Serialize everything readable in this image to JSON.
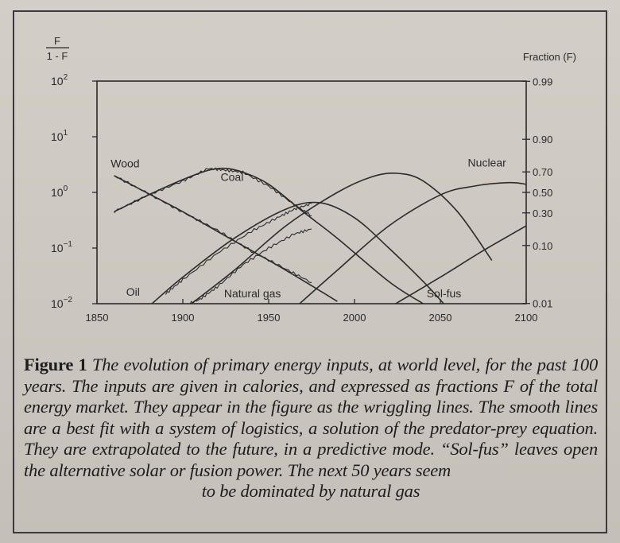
{
  "chart_data": {
    "type": "line",
    "x_range": [
      1850,
      2100
    ],
    "x_ticks": [
      "1850",
      "1900",
      "1950",
      "2000",
      "2050",
      "2100"
    ],
    "left_axis": {
      "label_top": "F",
      "label_bottom": "1 - F",
      "scale": "log",
      "range": [
        0.01,
        100
      ],
      "ticks": [
        {
          "base": "10",
          "exp": "2",
          "value": 100
        },
        {
          "base": "10",
          "exp": "1",
          "value": 10
        },
        {
          "base": "10",
          "exp": "0",
          "value": 1
        },
        {
          "base": "10",
          "exp": "−1",
          "value": 0.1
        },
        {
          "base": "10",
          "exp": "−2",
          "value": 0.01
        }
      ]
    },
    "right_axis": {
      "label": "Fraction (F)",
      "ticks": [
        {
          "label": "0.99",
          "value": 0.99
        },
        {
          "label": "0.90",
          "value": 0.9
        },
        {
          "label": "0.70",
          "value": 0.7
        },
        {
          "label": "0.50",
          "value": 0.5
        },
        {
          "label": "0.30",
          "value": 0.3
        },
        {
          "label": "0.10",
          "value": 0.1
        },
        {
          "label": "0.01",
          "value": 0.01
        }
      ]
    },
    "series": [
      {
        "name": "Wood",
        "x": [
          1860,
          1880,
          1900,
          1920,
          1940,
          1960,
          1980,
          1990
        ],
        "y": [
          2.0,
          0.95,
          0.45,
          0.2,
          0.09,
          0.04,
          0.017,
          0.011
        ]
      },
      {
        "name": "Coal",
        "x": [
          1860,
          1880,
          1900,
          1915,
          1925,
          1935,
          1950,
          1970,
          1990,
          2020,
          2040
        ],
        "y": [
          0.45,
          0.9,
          1.7,
          2.5,
          2.7,
          2.3,
          1.4,
          0.45,
          0.15,
          0.025,
          0.01
        ]
      },
      {
        "name": "Oil",
        "x": [
          1882,
          1900,
          1930,
          1960,
          1980,
          2000,
          2020,
          2040,
          2052
        ],
        "y": [
          0.01,
          0.03,
          0.15,
          0.5,
          0.65,
          0.35,
          0.1,
          0.025,
          0.01
        ]
      },
      {
        "name": "Natural gas",
        "x": [
          1905,
          1930,
          1960,
          1990,
          2010,
          2025,
          2040,
          2060,
          2080
        ],
        "y": [
          0.01,
          0.04,
          0.25,
          1.0,
          1.9,
          2.2,
          1.6,
          0.45,
          0.06
        ]
      },
      {
        "name": "Nuclear",
        "x": [
          1968,
          1990,
          2020,
          2050,
          2070,
          2090,
          2100
        ],
        "y": [
          0.01,
          0.04,
          0.25,
          0.9,
          1.3,
          1.5,
          1.4
        ]
      },
      {
        "name": "Sol-fus",
        "x": [
          2024,
          2050,
          2075,
          2100
        ],
        "y": [
          0.01,
          0.03,
          0.09,
          0.25
        ]
      }
    ],
    "historical": {
      "Wood": {
        "x": [
          1860,
          1880,
          1900,
          1920,
          1940,
          1960,
          1975
        ],
        "y": [
          2.0,
          0.95,
          0.44,
          0.21,
          0.088,
          0.042,
          0.024
        ]
      },
      "Coal": {
        "x": [
          1860,
          1880,
          1900,
          1915,
          1925,
          1935,
          1950,
          1965,
          1975
        ],
        "y": [
          0.45,
          0.9,
          1.6,
          2.7,
          2.5,
          2.3,
          1.3,
          0.6,
          0.38
        ]
      },
      "Oil": {
        "x": [
          1890,
          1900,
          1920,
          1940,
          1955,
          1965,
          1975
        ],
        "y": [
          0.015,
          0.027,
          0.08,
          0.2,
          0.35,
          0.5,
          0.63
        ]
      },
      "Natural gas": {
        "x": [
          1900,
          1910,
          1920,
          1935,
          1950,
          1965,
          1975
        ],
        "y": [
          0.009,
          0.012,
          0.02,
          0.05,
          0.1,
          0.18,
          0.22
        ]
      }
    },
    "annotations": [
      {
        "text": "Wood",
        "x": 1858,
        "y": 2.8
      },
      {
        "text": "Coal",
        "x": 1922,
        "y": 1.6
      },
      {
        "text": "Oil",
        "x": 1867,
        "y": 0.014
      },
      {
        "text": "Natural gas",
        "x": 1924,
        "y": 0.013
      },
      {
        "text": "Sol-fus",
        "x": 2042,
        "y": 0.013
      },
      {
        "text": "Nuclear",
        "x": 2066,
        "y": 2.9
      }
    ]
  },
  "caption": {
    "label": "Figure 1",
    "body": " The evolution of primary energy inputs, at world level, for the past 100 years. The inputs are given in calories, and expressed as fractions F of the total energy market. They appear in the figure as the wriggling lines. The smooth lines are a best fit with a system of logistics, a solution of the predator-prey equation. They are extrapolated to the future, in a predictive mode. “Sol-fus” leaves open the alternative solar or fusion power. The next 50 years seem",
    "last_line": "to be dominated by natural gas"
  }
}
